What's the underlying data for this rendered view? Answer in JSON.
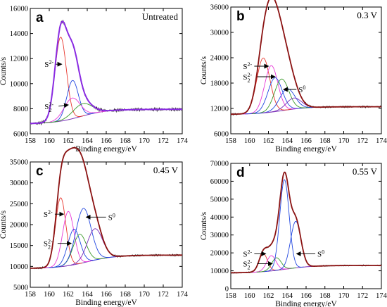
{
  "chart_data": [
    {
      "type": "line",
      "panel_letter": "a",
      "condition": "Untreated",
      "xlabel": "Binding energy/eV",
      "ylabel": "Counts/s",
      "xlim": [
        158,
        174
      ],
      "ylim": [
        6000,
        16000
      ],
      "xticks": [
        158,
        160,
        162,
        164,
        166,
        168,
        170,
        172,
        174
      ],
      "yticks": [
        6000,
        8000,
        10000,
        12000,
        14000,
        16000
      ],
      "background": {
        "left": 6800,
        "right": 7950,
        "mid": 163.3,
        "width": 1.4
      },
      "noise_amp": 130,
      "peaks": [
        {
          "center": 161.2,
          "height": 6700,
          "width": 0.6,
          "color": "#e8382f"
        },
        {
          "center": 162.45,
          "height": 3050,
          "width": 0.6,
          "color": "#2046e0"
        },
        {
          "center": 162.4,
          "height": 1650,
          "width": 0.85,
          "color": "#e838d8"
        },
        {
          "center": 163.5,
          "height": 980,
          "width": 1.0,
          "color": "#3a9a2a"
        }
      ],
      "annotations": [
        {
          "label": "S2-",
          "text_x": 159.5,
          "text_y": 11550,
          "arrow_to_x": 161.3,
          "arrow_y": 11550
        },
        {
          "label": "S22-",
          "text_x": 159.5,
          "text_y": 8200,
          "arrow_to_x": 162.0,
          "arrow_y": 8300
        }
      ]
    },
    {
      "type": "line",
      "panel_letter": "b",
      "condition": "0.3 V",
      "xlabel": "Binding energy/eV",
      "ylabel": "Counts/s",
      "xlim": [
        158,
        174
      ],
      "ylim": [
        6000,
        36000
      ],
      "xticks": [
        158,
        160,
        162,
        164,
        166,
        168,
        170,
        172,
        174
      ],
      "yticks": [
        6000,
        12000,
        18000,
        24000,
        30000,
        36000
      ],
      "background": {
        "left": 10600,
        "right": 12400,
        "mid": 163.5,
        "width": 1.4
      },
      "noise_amp": 220,
      "peaks": [
        {
          "center": 161.45,
          "height": 13000,
          "width": 0.7,
          "color": "#e8382f"
        },
        {
          "center": 162.3,
          "height": 11000,
          "width": 0.7,
          "color": "#e838d8"
        },
        {
          "center": 162.7,
          "height": 8000,
          "width": 0.75,
          "color": "#2046e0"
        },
        {
          "center": 163.4,
          "height": 7500,
          "width": 0.75,
          "color": "#3a9a2a"
        },
        {
          "center": 164.0,
          "height": 5000,
          "width": 0.8,
          "color": "#2046e0"
        },
        {
          "center": 164.7,
          "height": 2600,
          "width": 0.8,
          "color": "#7a2fb8"
        }
      ],
      "annotations": [
        {
          "label": "S2-",
          "text_x": 159.3,
          "text_y": 22000,
          "arrow_to_x": 162.0,
          "arrow_y": 22000
        },
        {
          "label": "S22-",
          "text_x": 159.3,
          "text_y": 19500,
          "arrow_to_x": 162.7,
          "arrow_y": 19500
        },
        {
          "label": "S0",
          "text_x": 165.2,
          "text_y": 16500,
          "arrow_to_x": 163.6,
          "arrow_y": 16500
        }
      ]
    },
    {
      "type": "line",
      "panel_letter": "c",
      "condition": "0.45 V",
      "xlabel": "Binding energy/eV",
      "ylabel": "Counts/s",
      "xlim": [
        158,
        174
      ],
      "ylim": [
        5000,
        35000
      ],
      "xticks": [
        158,
        160,
        162,
        164,
        166,
        168,
        170,
        172,
        174
      ],
      "yticks": [
        5000,
        10000,
        15000,
        20000,
        25000,
        30000,
        35000
      ],
      "background": {
        "left": 9500,
        "right": 12700,
        "mid": 164.0,
        "width": 1.5
      },
      "noise_amp": 230,
      "peaks": [
        {
          "center": 161.2,
          "height": 16500,
          "width": 0.55,
          "color": "#e8382f"
        },
        {
          "center": 162.0,
          "height": 13000,
          "width": 0.6,
          "color": "#e838d8"
        },
        {
          "center": 162.6,
          "height": 8500,
          "width": 0.65,
          "color": "#2046e0"
        },
        {
          "center": 163.2,
          "height": 7000,
          "width": 0.7,
          "color": "#3a9a2a"
        },
        {
          "center": 163.6,
          "height": 13000,
          "width": 0.8,
          "color": "#2046e0"
        },
        {
          "center": 164.8,
          "height": 7500,
          "width": 0.8,
          "color": "#7a2fb8"
        }
      ],
      "annotations": [
        {
          "label": "S2-",
          "text_x": 159.4,
          "text_y": 22500,
          "arrow_to_x": 161.5,
          "arrow_y": 22500
        },
        {
          "label": "S22-",
          "text_x": 159.4,
          "text_y": 15500,
          "arrow_to_x": 162.3,
          "arrow_y": 15500
        },
        {
          "label": "S0",
          "text_x": 166.2,
          "text_y": 21800,
          "arrow_to_x": 163.9,
          "arrow_y": 21800
        }
      ]
    },
    {
      "type": "line",
      "panel_letter": "d",
      "condition": "0.55 V",
      "xlabel": "Binding energy/eV",
      "ylabel": "Counts/s",
      "xlim": [
        158,
        174
      ],
      "ylim": [
        0,
        70000
      ],
      "xticks": [
        158,
        160,
        162,
        164,
        166,
        168,
        170,
        172,
        174
      ],
      "yticks": [
        0,
        10000,
        20000,
        30000,
        40000,
        50000,
        60000,
        70000
      ],
      "background": {
        "left": 8800,
        "right": 13000,
        "mid": 163.8,
        "width": 1.5
      },
      "noise_amp": 350,
      "peaks": [
        {
          "center": 161.45,
          "height": 10000,
          "width": 0.45,
          "color": "#e8382f"
        },
        {
          "center": 162.3,
          "height": 8500,
          "width": 0.5,
          "color": "#e838d8"
        },
        {
          "center": 162.85,
          "height": 7000,
          "width": 0.5,
          "color": "#3a9a2a"
        },
        {
          "center": 163.7,
          "height": 50000,
          "width": 0.5,
          "color": "#2046e0"
        },
        {
          "center": 164.9,
          "height": 26000,
          "width": 0.55,
          "color": "#2046e0"
        }
      ],
      "annotations": [
        {
          "label": "S2-",
          "text_x": 159.3,
          "text_y": 19500,
          "arrow_to_x": 161.7,
          "arrow_y": 19500
        },
        {
          "label": "S22-",
          "text_x": 159.3,
          "text_y": 14000,
          "arrow_to_x": 162.4,
          "arrow_y": 14000
        },
        {
          "label": "S0",
          "text_x": 167.2,
          "text_y": 19500,
          "arrow_to_x": 165.0,
          "arrow_y": 19500
        }
      ]
    }
  ]
}
